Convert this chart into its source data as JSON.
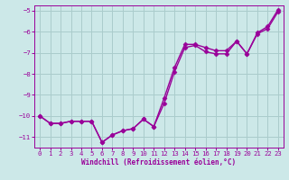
{
  "line1_x": [
    0,
    1,
    2,
    3,
    4,
    5,
    6,
    7,
    8,
    9,
    10,
    11,
    12,
    13,
    14,
    15,
    16,
    17,
    18,
    19,
    20,
    21,
    22,
    23
  ],
  "line1_y": [
    -10.0,
    -10.35,
    -10.35,
    -10.25,
    -10.25,
    -10.25,
    -11.25,
    -10.9,
    -10.7,
    -10.6,
    -10.15,
    -10.5,
    -9.4,
    -7.9,
    -6.75,
    -6.65,
    -6.95,
    -7.05,
    -7.05,
    -6.45,
    -7.05,
    -6.1,
    -5.85,
    -5.05
  ],
  "line2_x": [
    0,
    1,
    2,
    3,
    4,
    5,
    6,
    7,
    8,
    9,
    10,
    11,
    12,
    13,
    14,
    15,
    16,
    17,
    18,
    19,
    20,
    21,
    22,
    23
  ],
  "line2_y": [
    -10.0,
    -10.35,
    -10.35,
    -10.25,
    -10.25,
    -10.25,
    -11.25,
    -10.9,
    -10.7,
    -10.6,
    -10.15,
    -10.5,
    -9.15,
    -7.7,
    -6.6,
    -6.6,
    -6.75,
    -6.9,
    -6.9,
    -6.45,
    -7.05,
    -6.05,
    -5.75,
    -4.95
  ],
  "line_color": "#990099",
  "bg_color": "#cce8e8",
  "grid_color": "#aacccc",
  "xlabel": "Windchill (Refroidissement éolien,°C)",
  "ylim": [
    -11.5,
    -4.75
  ],
  "xlim": [
    -0.5,
    23.5
  ],
  "yticks": [
    -11,
    -10,
    -9,
    -8,
    -7,
    -6,
    -5
  ],
  "xticks": [
    0,
    1,
    2,
    3,
    4,
    5,
    6,
    7,
    8,
    9,
    10,
    11,
    12,
    13,
    14,
    15,
    16,
    17,
    18,
    19,
    20,
    21,
    22,
    23
  ],
  "marker": "D",
  "markersize": 2.5,
  "linewidth": 1.0,
  "figsize": [
    3.2,
    2.0
  ],
  "dpi": 100
}
